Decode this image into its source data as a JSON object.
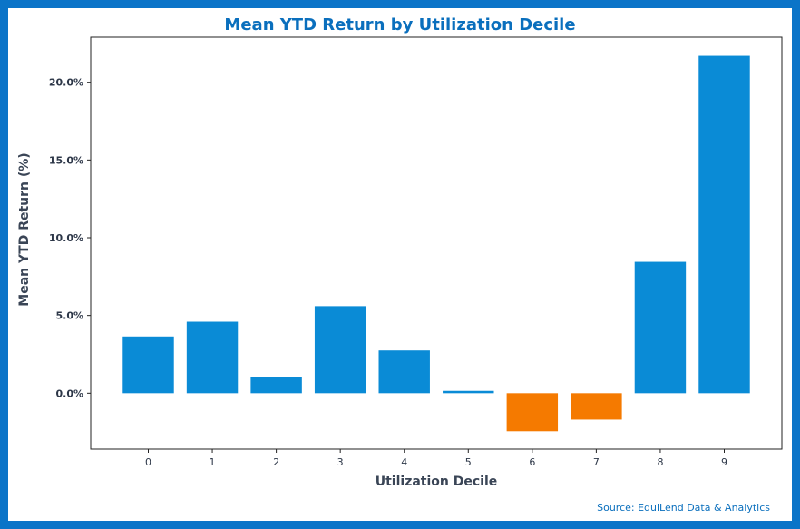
{
  "chart_data": {
    "type": "bar",
    "title": "Mean YTD Return by Utilization Decile",
    "xlabel": "Utilization Decile",
    "ylabel": "Mean YTD Return (%)",
    "categories": [
      "0",
      "1",
      "2",
      "3",
      "4",
      "5",
      "6",
      "7",
      "8",
      "9"
    ],
    "values": [
      3.65,
      4.6,
      1.05,
      5.6,
      2.75,
      0.15,
      -2.45,
      -1.7,
      8.45,
      21.7
    ],
    "ylim": [
      -3.6,
      22.9
    ],
    "yticks": [
      0,
      5,
      10,
      15,
      20
    ],
    "ytick_labels": [
      "0.0%",
      "5.0%",
      "10.0%",
      "15.0%",
      "20.0%"
    ],
    "grid": false,
    "colors": {
      "positive": "#0a8bd6",
      "negative": "#f57a00"
    }
  },
  "source": "Source: EquiLend Data & Analytics"
}
